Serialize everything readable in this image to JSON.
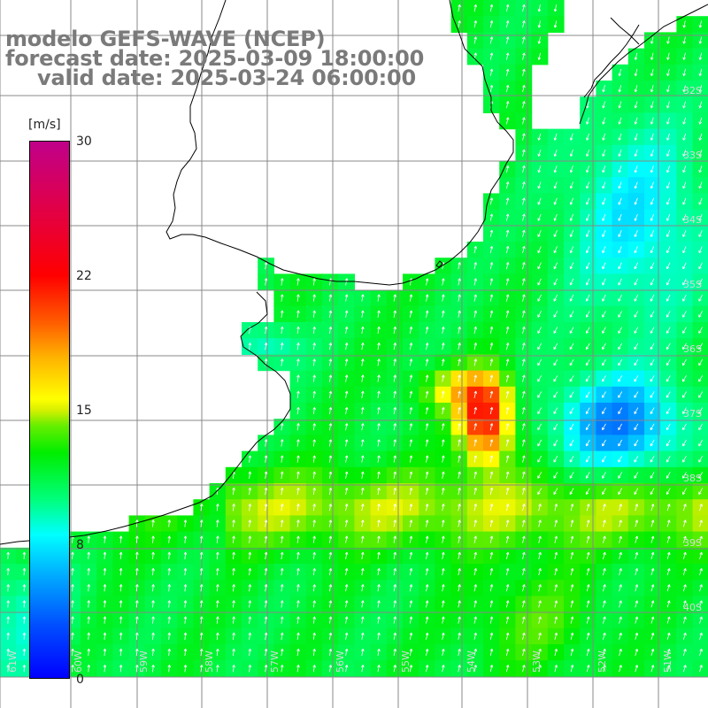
{
  "title": {
    "line1": "modelo GEFS-WAVE (NCEP)",
    "line2": "forecast date: 2025-03-09 18:00:00",
    "line3": "valid date: 2025-03-24 06:00:00"
  },
  "colorbar": {
    "unit": "[m/s]",
    "ticks": [
      "30",
      "22",
      "15",
      "8",
      "0"
    ],
    "tick_values": [
      30,
      22,
      15,
      8,
      0
    ],
    "range": [
      0,
      30
    ],
    "colors": [
      "#0000ff",
      "#00aaff",
      "#00ffff",
      "#00ee00",
      "#ffff00",
      "#ff6000",
      "#ff0000",
      "#c0008a"
    ]
  },
  "map": {
    "variable": "wind speed and direction",
    "longitude_labels": [
      "61W",
      "60W",
      "59W",
      "58W",
      "57W",
      "56W",
      "55W",
      "54W",
      "53W",
      "52W",
      "51W"
    ],
    "latitude_labels": [
      "32S",
      "33S",
      "34S",
      "35S",
      "36S",
      "37S",
      "38S",
      "39S",
      "40S"
    ],
    "land_color": "#ffffff",
    "coastline_color": "#000000",
    "grid_color": "#888888",
    "arrow_color": "#ffffff"
  }
}
